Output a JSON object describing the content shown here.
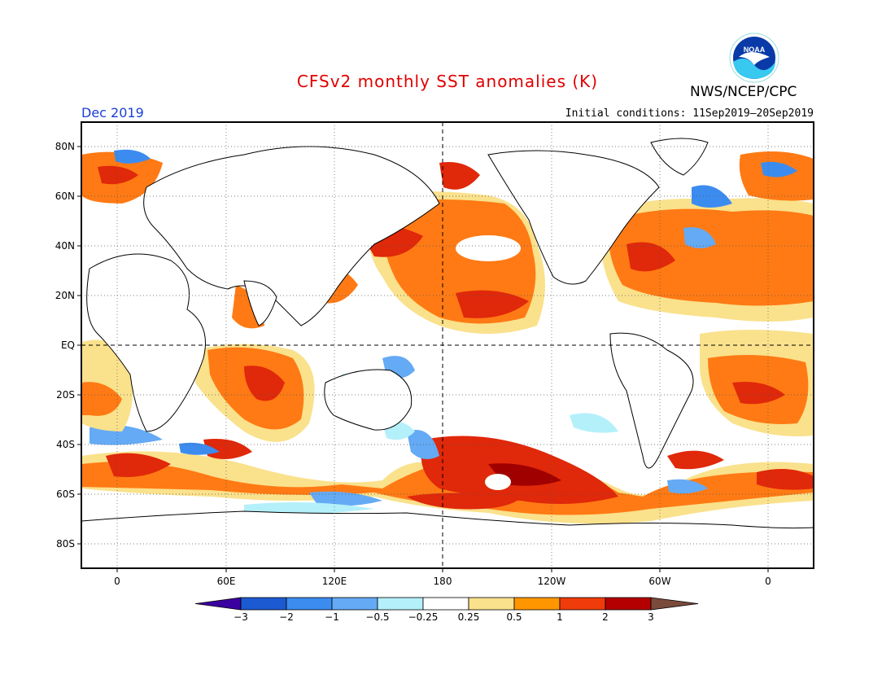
{
  "header": {
    "title": "CFSv2 monthly SST anomalies (K)",
    "valid_month": "Dec 2019",
    "initial_conditions": "Initial conditions: 11Sep2019–20Sep2019",
    "agency": "NWS/NCEP/CPC",
    "logo_text": "NOAA"
  },
  "axes": {
    "lat_labels": [
      "80N",
      "60N",
      "40N",
      "20N",
      "EQ",
      "20S",
      "40S",
      "60S",
      "80S"
    ],
    "lon_labels": [
      "0",
      "60E",
      "120E",
      "180",
      "120W",
      "60W",
      "0"
    ]
  },
  "colorbar": {
    "labels": [
      "−3",
      "−2",
      "−1",
      "−0.5",
      "−0.25",
      "0.25",
      "0.5",
      "1",
      "2",
      "3"
    ],
    "colors": [
      "#3b00a0",
      "#1c5ad2",
      "#3c8cf0",
      "#64aaf5",
      "#b4f0fa",
      "#ffffff",
      "#fae18c",
      "#ff9600",
      "#f03c0a",
      "#b40000",
      "#7a4a3a"
    ]
  },
  "legend_colors": {
    "warm_1": "#fae18c",
    "warm_2": "#ff7a14",
    "warm_3": "#e0280a",
    "warm_4": "#a00000",
    "cool_1": "#b4f0fa",
    "cool_2": "#64aaf5",
    "cool_3": "#3c8cf0"
  }
}
